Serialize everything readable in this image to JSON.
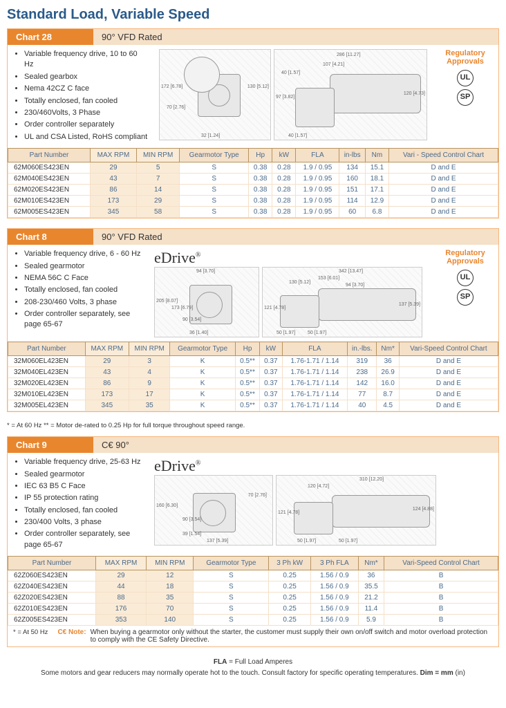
{
  "page_title": "Standard Load, Variable Speed",
  "chart28": {
    "label": "Chart 28",
    "desc": "90° VFD Rated",
    "bullets": [
      "Variable frequency drive, 10 to 60 Hz",
      "Sealed gearbox",
      "Nema 42CZ C face",
      "Totally enclosed, fan cooled",
      "230/460Volts, 3 Phase",
      "Order controller separately",
      "UL and CSA Listed, RoHS compliant"
    ],
    "approvals_title": "Regulatory Approvals",
    "cert1": "UL",
    "cert2": "SP",
    "dims_left": [
      "172 [6.78]",
      "70 [2.76]",
      "32 [1.24]",
      "130 [5.12]"
    ],
    "dims_right": [
      "286 [11.27]",
      "107 [4.21]",
      "40 [1.57]",
      "97 [3.82]",
      "40 [1.57]",
      "120 [4.73]"
    ],
    "columns": [
      "Part Number",
      "MAX RPM",
      "MIN RPM",
      "Gearmotor Type",
      "Hp",
      "kW",
      "FLA",
      "in-lbs",
      "Nm",
      "Vari - Speed Control Chart"
    ],
    "col_align": [
      "left",
      "center",
      "center",
      "center",
      "center",
      "center",
      "center",
      "center",
      "center",
      "center"
    ],
    "hl_cols": [
      1,
      2
    ],
    "rows": [
      [
        "62M060ES423EN",
        "29",
        "5",
        "S",
        "0.38",
        "0.28",
        "1.9 / 0.95",
        "134",
        "15.1",
        "D and E"
      ],
      [
        "62M040ES423EN",
        "43",
        "7",
        "S",
        "0.38",
        "0.28",
        "1.9 / 0.95",
        "160",
        "18.1",
        "D and E"
      ],
      [
        "62M020ES423EN",
        "86",
        "14",
        "S",
        "0.38",
        "0.28",
        "1.9 / 0.95",
        "151",
        "17.1",
        "D and E"
      ],
      [
        "62M010ES423EN",
        "173",
        "29",
        "S",
        "0.38",
        "0.28",
        "1.9 / 0.95",
        "114",
        "12.9",
        "D and E"
      ],
      [
        "62M005ES423EN",
        "345",
        "58",
        "S",
        "0.38",
        "0.28",
        "1.9 / 0.95",
        "60",
        "6.8",
        "D and E"
      ]
    ]
  },
  "chart8": {
    "label": "Chart 8",
    "desc": "90° VFD Rated",
    "logo": "eDrive",
    "bullets": [
      "Variable frequency drive, 6 - 60 Hz",
      "Sealed gearmotor",
      "NEMA 56C C Face",
      "Totally enclosed, fan cooled",
      "208-230/460 Volts, 3 phase",
      "Order controller separately, see page 65-67"
    ],
    "approvals_title": "Regulatory Approvals",
    "cert1": "UL",
    "cert2": "SP",
    "dims_left": [
      "94 [3.70]",
      "205 [8.07]",
      "173 [6.79]",
      "90 [3.54]",
      "36 [1.40]"
    ],
    "dims_right": [
      "342 [13.47]",
      "153 [6.01]",
      "94 [3.70]",
      "130 [5.12]",
      "121 [4.78]",
      "50 [1.97]",
      "50 [1.97]",
      "137 [5.39]"
    ],
    "columns": [
      "Part Number",
      "MAX RPM",
      "MIN RPM",
      "Gearmotor Type",
      "Hp",
      "kW",
      "FLA",
      "in.-lbs.",
      "Nm*",
      "Vari-Speed Control Chart"
    ],
    "hl_cols": [
      1,
      2
    ],
    "rows": [
      [
        "32M060EL423EN",
        "29",
        "3",
        "K",
        "0.5**",
        "0.37",
        "1.76-1.71 / 1.14",
        "319",
        "36",
        "D and E"
      ],
      [
        "32M040EL423EN",
        "43",
        "4",
        "K",
        "0.5**",
        "0.37",
        "1.76-1.71 / 1.14",
        "238",
        "26.9",
        "D and E"
      ],
      [
        "32M020EL423EN",
        "86",
        "9",
        "K",
        "0.5**",
        "0.37",
        "1.76-1.71 / 1.14",
        "142",
        "16.0",
        "D and E"
      ],
      [
        "32M010EL423EN",
        "173",
        "17",
        "K",
        "0.5**",
        "0.37",
        "1.76-1.71 / 1.14",
        "77",
        "8.7",
        "D and E"
      ],
      [
        "32M005EL423EN",
        "345",
        "35",
        "K",
        "0.5**",
        "0.37",
        "1.76-1.71 / 1.14",
        "40",
        "4.5",
        "D and E"
      ]
    ],
    "footnote": "* = At 60 Hz   ** = Motor de-rated to 0.25 Hp for full torque throughout speed range."
  },
  "chart9": {
    "label": "Chart 9",
    "desc": "C€  90°",
    "logo": "eDrive",
    "bullets": [
      "Variable frequency drive, 25-63 Hz",
      "Sealed gearmotor",
      "IEC 63 B5 C Face",
      "IP 55 protection rating",
      "Totally enclosed, fan cooled",
      "230/400 Volts, 3 phase",
      "Order controller separately, see page 65-67"
    ],
    "dims_left": [
      "160 [6.30]",
      "90 [3.54]",
      "70 [2.76]",
      "39 [1.54]",
      "137 [5.39]"
    ],
    "dims_right": [
      "310 [12.20]",
      "120 [4.72]",
      "121 [4.78]",
      "50 [1.97]",
      "50 [1.97]",
      "124 [4.88]"
    ],
    "columns": [
      "Part Number",
      "MAX RPM",
      "MIN RPM",
      "Gearmotor Type",
      "3 Ph kW",
      "3 Ph FLA",
      "Nm*",
      "Vari-Speed Control Chart"
    ],
    "hl_cols": [
      1,
      2
    ],
    "rows": [
      [
        "62Z060ES423EN",
        "29",
        "12",
        "S",
        "0.25",
        "1.56 / 0.9",
        "36",
        "B"
      ],
      [
        "62Z040ES423EN",
        "44",
        "18",
        "S",
        "0.25",
        "1.56 / 0.9",
        "35.5",
        "B"
      ],
      [
        "62Z020ES423EN",
        "88",
        "35",
        "S",
        "0.25",
        "1.56 / 0.9",
        "21.2",
        "B"
      ],
      [
        "62Z010ES423EN",
        "176",
        "70",
        "S",
        "0.25",
        "1.56 / 0.9",
        "11.4",
        "B"
      ],
      [
        "62Z005ES423EN",
        "353",
        "140",
        "S",
        "0.25",
        "1.56 / 0.9",
        "5.9",
        "B"
      ]
    ],
    "footnote": "* = At 50 Hz",
    "ce_note_label": "C€ Note:",
    "ce_note": "When buying a gearmotor only without the starter, the customer must supply their own on/off switch and motor overload protection to comply with the CE Safety Directive."
  },
  "footer": {
    "line1_bold": "FLA",
    "line1_rest": " = Full Load Amperes",
    "line2_a": "Some motors and gear reducers may normally operate hot to the touch.  Consult factory for specific operating temperatures.  ",
    "line2_b": "Dim = mm",
    "line2_c": " (in)"
  },
  "style": {
    "accent_orange": "#e8862e",
    "header_bg": "#f5e0c8",
    "title_color": "#2a5a8a"
  }
}
